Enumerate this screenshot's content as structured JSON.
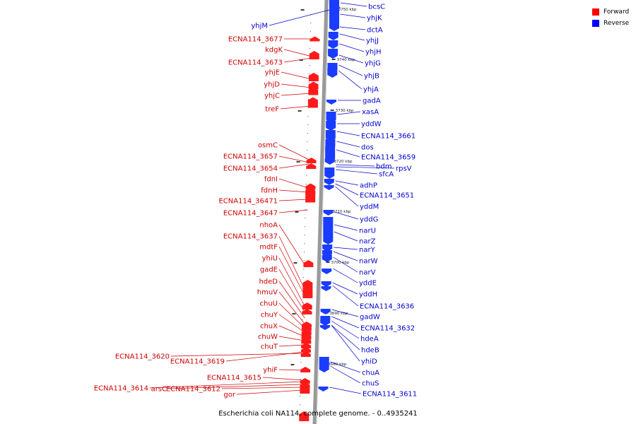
{
  "caption": "Escherichia coli NA114, complete genome. - 0..4935241",
  "legend": [
    {
      "label": "Forward",
      "color": "#ff0000"
    },
    {
      "label": "Reverse",
      "color": "#0000ff"
    }
  ],
  "colors": {
    "forward_fill": "#ff1a1a",
    "forward_text": "#cc0000",
    "reverse_fill": "#1a3cff",
    "reverse_text": "#0000cc",
    "backbone": "#999999"
  },
  "ticks": [
    "3750 kbp",
    "3740 kbp",
    "3730 kbp",
    "3720 kbp",
    "3710 kbp",
    "3700 kbp",
    "3690 kbp",
    "3680 kbp"
  ],
  "forward_genes": [
    "ECNA114_3677",
    "kdgK",
    "ECNA114_3673",
    "yhjE",
    "yhjD",
    "yhjC",
    "treF",
    "osmC",
    "ECNA114_3657",
    "ECNA114_3654",
    "fdnI",
    "fdnH",
    "ECNA114_36471",
    "ECNA114_3647",
    "nhoA",
    "ECNA114_3637",
    "mdtF",
    "yhiU",
    "gadE",
    "hdeD",
    "hmuV",
    "chuU",
    "chuY",
    "chuX",
    "chuW",
    "chuT",
    "ECNA114_3620",
    "ECNA114_3619",
    "yhiF",
    "ECNA114_3615",
    "ECNA114_3614",
    "arsC",
    "ECNA114_3612",
    "gor"
  ],
  "reverse_genes": [
    "yhjM",
    "bcsC",
    "yhjK",
    "dctA",
    "yhjJ",
    "yhjH",
    "yhjG",
    "yhjB",
    "yhjA",
    "gadA",
    "xasA",
    "yddW",
    "ECNA114_3661",
    "dos",
    "ECNA114_3659",
    "bdm",
    "rpsV",
    "sfcA",
    "adhP",
    "ECNA114_3651",
    "yddM",
    "yddG",
    "narU",
    "narZ",
    "narY",
    "narW",
    "narV",
    "yddE",
    "yddH",
    "ECNA114_3636",
    "gadW",
    "ECNA114_3632",
    "hdeA",
    "hdeB",
    "yhiD",
    "chuA",
    "chuS",
    "ECNA114_3611"
  ]
}
